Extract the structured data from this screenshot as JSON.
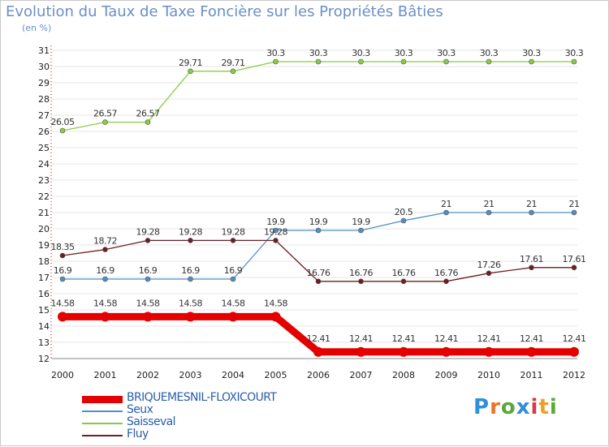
{
  "title": "Evolution du Taux de Taxe Foncière sur les Propriétés Bâties",
  "unit": "(en %)",
  "logo": {
    "text": "Proxiti",
    "letters": [
      "P",
      "r",
      "o",
      "x",
      "i",
      "t",
      "i"
    ],
    "colors": [
      "#2f8fd8",
      "#e8762c",
      "#5aa83a",
      "#2f8fd8",
      "#d8364a",
      "#e8a12c",
      "#5aa83a"
    ]
  },
  "chart_data": {
    "type": "line",
    "title": "Evolution du Taux de Taxe Foncière sur les Propriétés Bâties",
    "ylabel": "(en %)",
    "xlabel": "",
    "ylim": [
      12,
      31
    ],
    "yticks": [
      12,
      13,
      14,
      15,
      16,
      17,
      18,
      19,
      20,
      21,
      22,
      23,
      24,
      25,
      26,
      27,
      28,
      29,
      30,
      31
    ],
    "categories": [
      "2000",
      "2001",
      "2002",
      "2003",
      "2004",
      "2005",
      "2006",
      "2007",
      "2008",
      "2009",
      "2010",
      "2011",
      "2012"
    ],
    "series": [
      {
        "name": "BRIQUEMESNIL-FLOXICOURT",
        "color": "#e50000",
        "values": [
          14.58,
          14.58,
          14.58,
          14.58,
          14.58,
          14.58,
          12.41,
          12.41,
          12.41,
          12.41,
          12.41,
          12.41,
          12.41
        ],
        "labels": [
          "14.58",
          "14.58",
          "14.58",
          "14.58",
          "14.58",
          "14.58",
          "12.41",
          "12.41",
          "12.41",
          "12.41",
          "12.41",
          "12.41",
          "12.41"
        ]
      },
      {
        "name": "Seux",
        "color": "#4f8fc4",
        "values": [
          16.9,
          16.9,
          16.9,
          16.9,
          16.9,
          19.9,
          19.9,
          19.9,
          20.5,
          21,
          21,
          21,
          21
        ],
        "labels": [
          "16.9",
          "16.9",
          "16.9",
          "16.9",
          "16.9",
          "19.9",
          "19.9",
          "19.9",
          "20.5",
          "21",
          "21",
          "21",
          "21"
        ]
      },
      {
        "name": "Saisseval",
        "color": "#88cc44",
        "values": [
          26.05,
          26.57,
          26.57,
          29.71,
          29.71,
          30.3,
          30.3,
          30.3,
          30.3,
          30.3,
          30.3,
          30.3,
          30.3
        ],
        "labels": [
          "26.05",
          "26.57",
          "26.57",
          "29.71",
          "29.71",
          "30.3",
          "30.3",
          "30.3",
          "30.3",
          "30.3",
          "30.3",
          "30.3",
          "30.3"
        ]
      },
      {
        "name": "Fluy",
        "color": "#6b1f24",
        "values": [
          18.35,
          18.72,
          19.28,
          19.28,
          19.28,
          19.28,
          16.76,
          16.76,
          16.76,
          16.76,
          17.26,
          17.61,
          17.61
        ],
        "labels": [
          "18.35",
          "18.72",
          "19.28",
          "19.28",
          "19.28",
          "19.28",
          "16.76",
          "16.76",
          "16.76",
          "16.76",
          "17.26",
          "17.61",
          "17.61"
        ]
      }
    ]
  }
}
